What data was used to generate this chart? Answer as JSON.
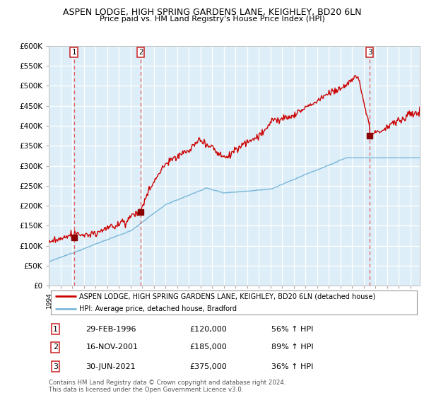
{
  "title": "ASPEN LODGE, HIGH SPRING GARDENS LANE, KEIGHLEY, BD20 6LN",
  "subtitle": "Price paid vs. HM Land Registry's House Price Index (HPI)",
  "ylim": [
    0,
    600000
  ],
  "yticks": [
    0,
    50000,
    100000,
    150000,
    200000,
    250000,
    300000,
    350000,
    400000,
    450000,
    500000,
    550000,
    600000
  ],
  "xlim_start": 1994.0,
  "xlim_end": 2025.8,
  "sale_dates": [
    1996.16,
    2001.88,
    2021.5
  ],
  "sale_prices": [
    120000,
    185000,
    375000
  ],
  "sale_labels": [
    "1",
    "2",
    "3"
  ],
  "hpi_color": "#7ab8d9",
  "price_color": "#cc0000",
  "legend_label_price": "ASPEN LODGE, HIGH SPRING GARDENS LANE, KEIGHLEY, BD20 6LN (detached house)",
  "legend_label_hpi": "HPI: Average price, detached house, Bradford",
  "table_rows": [
    [
      "1",
      "29-FEB-1996",
      "£120,000",
      "56% ↑ HPI"
    ],
    [
      "2",
      "16-NOV-2001",
      "£185,000",
      "89% ↑ HPI"
    ],
    [
      "3",
      "30-JUN-2021",
      "£375,000",
      "36% ↑ HPI"
    ]
  ],
  "footer": "Contains HM Land Registry data © Crown copyright and database right 2024.\nThis data is licensed under the Open Government Licence v3.0.",
  "background_plot": "#ddeef8"
}
